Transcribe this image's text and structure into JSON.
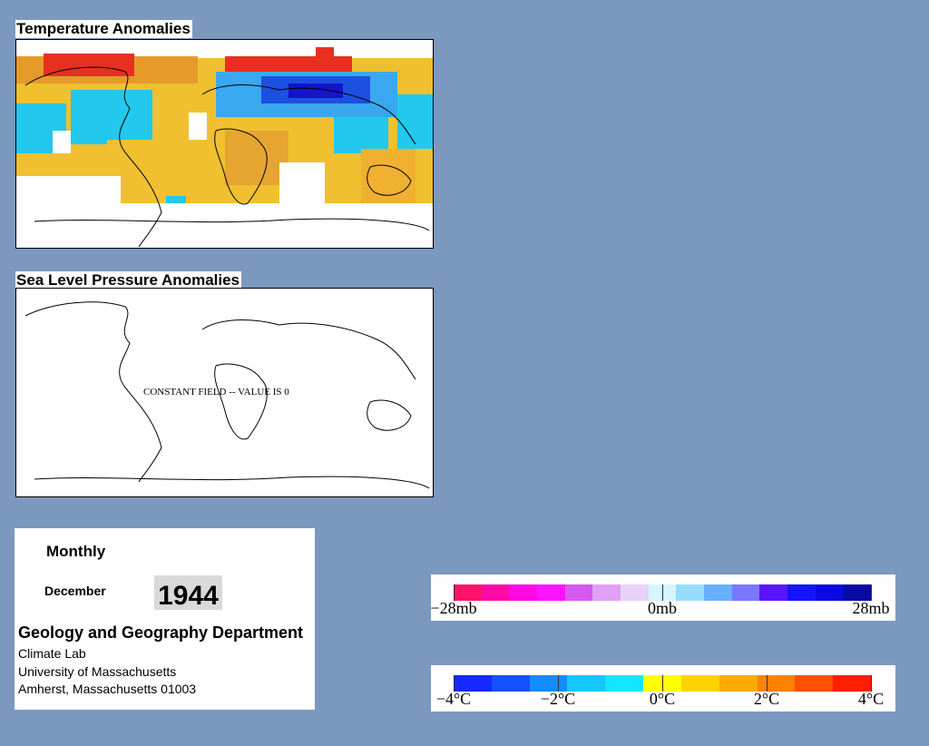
{
  "panels": {
    "temperature": {
      "title": "Temperature Anomalies"
    },
    "pressure": {
      "title": "Sea Level Pressure Anomalies",
      "overlay_text": "CONSTANT FIELD -- VALUE IS 0"
    }
  },
  "info": {
    "period": "Monthly",
    "month": "December",
    "year": "1944",
    "department": "Geology and Geography Department",
    "lines": [
      "Climate Lab",
      "University of Massachusetts",
      "Amherst, Massachusetts 01003"
    ]
  },
  "legends": {
    "pressure": {
      "colors": [
        "#ff1469",
        "#ff0aa5",
        "#ff0ae0",
        "#ff14ff",
        "#d45aef",
        "#e0a0f5",
        "#e8d2f8",
        "#d5f5ff",
        "#9adcff",
        "#6aaeff",
        "#7a78ff",
        "#5a14ff",
        "#1414ff",
        "#0a0ae0",
        "#0a0aa5"
      ],
      "labels": [
        {
          "text": "−28mb",
          "pos": 0.0
        },
        {
          "text": "0mb",
          "pos": 0.5
        },
        {
          "text": "28mb",
          "pos": 1.0
        }
      ]
    },
    "temperature": {
      "colors": [
        "#1428ff",
        "#1450ff",
        "#148cff",
        "#14c8ff",
        "#14e6ff",
        "#ffff00",
        "#ffd200",
        "#ffaa00",
        "#ff8200",
        "#ff5000",
        "#ff1e00"
      ],
      "labels": [
        {
          "text": "−4°C",
          "pos": 0.0
        },
        {
          "text": "−2°C",
          "pos": 0.25
        },
        {
          "text": "0°C",
          "pos": 0.5
        },
        {
          "text": "2°C",
          "pos": 0.75
        },
        {
          "text": "4°C",
          "pos": 1.0
        }
      ]
    }
  }
}
